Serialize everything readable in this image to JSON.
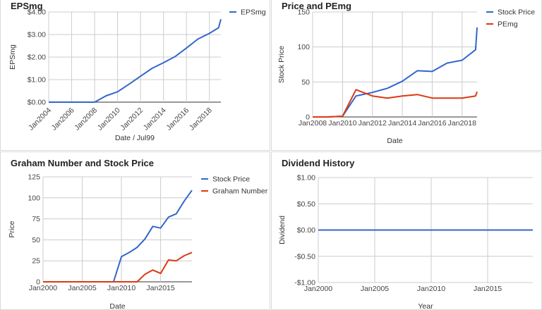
{
  "chart_data": [
    {
      "id": "eps",
      "type": "line",
      "title": "EPSmg",
      "xlabel": "Date / Jul99",
      "ylabel": "EPSmg",
      "x_type": "year",
      "xlim": [
        2004,
        2019
      ],
      "ylim": [
        0,
        4
      ],
      "yticks": [
        0,
        1,
        2,
        3,
        4
      ],
      "ytick_labels": [
        "$0.00",
        "$1.00",
        "$2.00",
        "$3.00",
        "$4.00"
      ],
      "xticks": [
        2004,
        2006,
        2008,
        2010,
        2012,
        2014,
        2016,
        2018
      ],
      "xtick_labels": [
        "Jan2004",
        "Jan2006",
        "Jan2008",
        "Jan2010",
        "Jan2012",
        "Jan2014",
        "Jan2016",
        "Jan2018"
      ],
      "xtick_rotate": true,
      "legend": "right",
      "series": [
        {
          "name": "EPSmg",
          "color": "#3366cc",
          "points": [
            [
              2004,
              0
            ],
            [
              2005,
              0
            ],
            [
              2006,
              0
            ],
            [
              2007,
              0
            ],
            [
              2008,
              0
            ],
            [
              2009,
              0.28
            ],
            [
              2010,
              0.46
            ],
            [
              2011,
              0.8
            ],
            [
              2012,
              1.15
            ],
            [
              2013,
              1.5
            ],
            [
              2014,
              1.75
            ],
            [
              2015,
              2.02
            ],
            [
              2016,
              2.4
            ],
            [
              2017,
              2.8
            ],
            [
              2018,
              3.05
            ],
            [
              2018.8,
              3.3
            ],
            [
              2019,
              3.68
            ]
          ]
        }
      ]
    },
    {
      "id": "price-pe",
      "type": "line",
      "title": "Price and PEmg",
      "xlabel": "Date",
      "ylabel": "Stock Price",
      "x_type": "year",
      "xlim": [
        2008,
        2019
      ],
      "ylim": [
        0,
        150
      ],
      "yticks": [
        0,
        50,
        100,
        150
      ],
      "ytick_labels": [
        "0",
        "50",
        "100",
        "150"
      ],
      "xticks": [
        2008,
        2010,
        2012,
        2014,
        2016,
        2018
      ],
      "xtick_labels": [
        "Jan2008",
        "Jan2010",
        "Jan2012",
        "Jan2014",
        "Jan2016",
        "Jan2018"
      ],
      "xtick_rotate": false,
      "legend": "right",
      "series": [
        {
          "name": "Stock Price",
          "color": "#3366cc",
          "points": [
            [
              2008,
              0
            ],
            [
              2009,
              0
            ],
            [
              2010,
              1
            ],
            [
              2010.9,
              30
            ],
            [
              2012,
              35
            ],
            [
              2013,
              41
            ],
            [
              2014,
              51
            ],
            [
              2015,
              66
            ],
            [
              2016,
              65
            ],
            [
              2017,
              77
            ],
            [
              2018,
              81
            ],
            [
              2018.9,
              96
            ],
            [
              2019,
              128
            ]
          ]
        },
        {
          "name": "PEmg",
          "color": "#dc3912",
          "points": [
            [
              2008,
              0
            ],
            [
              2009,
              0
            ],
            [
              2010,
              1
            ],
            [
              2010.9,
              39
            ],
            [
              2012,
              30
            ],
            [
              2013,
              27
            ],
            [
              2014,
              30
            ],
            [
              2015,
              32
            ],
            [
              2016,
              27
            ],
            [
              2017,
              27
            ],
            [
              2018,
              27
            ],
            [
              2018.9,
              30
            ],
            [
              2019,
              36
            ]
          ]
        }
      ]
    },
    {
      "id": "graham",
      "type": "line",
      "title": "Graham Number and Stock Price",
      "xlabel": "Date",
      "ylabel": "Price",
      "x_type": "year",
      "xlim": [
        2000,
        2019
      ],
      "ylim": [
        0,
        125
      ],
      "yticks": [
        0,
        25,
        50,
        75,
        100,
        125
      ],
      "ytick_labels": [
        "0",
        "25",
        "50",
        "75",
        "100",
        "125"
      ],
      "xticks": [
        2000,
        2005,
        2010,
        2015
      ],
      "xtick_labels": [
        "Jan2000",
        "Jan2005",
        "Jan2010",
        "Jan2015"
      ],
      "xtick_rotate": false,
      "legend": "right",
      "series": [
        {
          "name": "Stock Price",
          "color": "#3366cc",
          "points": [
            [
              2000,
              0
            ],
            [
              2003,
              0
            ],
            [
              2006,
              0
            ],
            [
              2009,
              0
            ],
            [
              2010,
              30
            ],
            [
              2011,
              35
            ],
            [
              2012,
              41
            ],
            [
              2013,
              51
            ],
            [
              2014,
              66
            ],
            [
              2015,
              64
            ],
            [
              2016,
              77
            ],
            [
              2017,
              81
            ],
            [
              2018,
              96
            ],
            [
              2019,
              109
            ]
          ]
        },
        {
          "name": "Graham Number",
          "color": "#dc3912",
          "points": [
            [
              2000,
              0
            ],
            [
              2005,
              0
            ],
            [
              2010,
              0
            ],
            [
              2012,
              0
            ],
            [
              2013,
              9
            ],
            [
              2014,
              14
            ],
            [
              2015,
              10
            ],
            [
              2016,
              26
            ],
            [
              2017,
              25
            ],
            [
              2018,
              31
            ],
            [
              2019,
              35
            ]
          ]
        }
      ]
    },
    {
      "id": "dividend",
      "type": "line",
      "title": "Dividend History",
      "xlabel": "Year",
      "ylabel": "Dividend",
      "x_type": "year",
      "xlim": [
        2000,
        2019
      ],
      "ylim": [
        -1,
        1
      ],
      "yticks": [
        -1,
        -0.5,
        0,
        0.5,
        1
      ],
      "ytick_labels": [
        "-$1.00",
        "-$0.50",
        "$0.00",
        "$0.50",
        "$1.00"
      ],
      "xticks": [
        2000,
        2005,
        2010,
        2015
      ],
      "xtick_labels": [
        "Jan2000",
        "Jan2005",
        "Jan2010",
        "Jan2015"
      ],
      "xtick_rotate": false,
      "legend": "none",
      "series": [
        {
          "name": "",
          "color": "#3366cc",
          "points": [
            [
              2000,
              0
            ],
            [
              2005,
              0
            ],
            [
              2010,
              0
            ],
            [
              2015,
              0
            ],
            [
              2019,
              0
            ]
          ]
        }
      ]
    }
  ]
}
